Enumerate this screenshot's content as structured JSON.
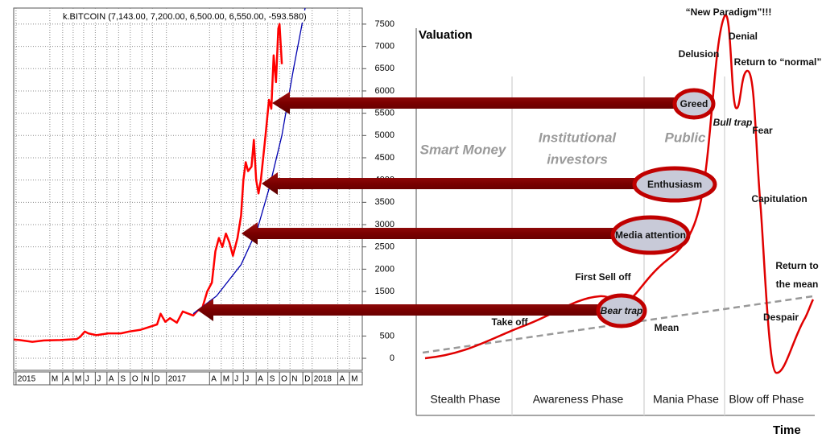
{
  "chart_data": {
    "type": "line",
    "title": "k.BITCOIN (7,143.00, 7,200.00, 6,500.00, 6,550.00, -593.580)",
    "xlim": [
      -0.2,
      29.7
    ],
    "ylim": [
      -270,
      7860
    ],
    "xticks": [
      {
        "value": 0,
        "label": "2015"
      },
      {
        "value": 2.9,
        "label": "M"
      },
      {
        "value": 4.0,
        "label": "A"
      },
      {
        "value": 4.9,
        "label": "M"
      },
      {
        "value": 5.8,
        "label": "J"
      },
      {
        "value": 6.8,
        "label": "J"
      },
      {
        "value": 7.8,
        "label": "A"
      },
      {
        "value": 8.8,
        "label": "S"
      },
      {
        "value": 9.8,
        "label": "O"
      },
      {
        "value": 10.8,
        "label": "N"
      },
      {
        "value": 11.7,
        "label": "D"
      },
      {
        "value": 12.9,
        "label": "2017"
      },
      {
        "value": 16.6,
        "label": "A"
      },
      {
        "value": 17.6,
        "label": "M"
      },
      {
        "value": 18.6,
        "label": "J"
      },
      {
        "value": 19.5,
        "label": "J"
      },
      {
        "value": 20.6,
        "label": "A"
      },
      {
        "value": 21.6,
        "label": "S"
      },
      {
        "value": 22.6,
        "label": "O"
      },
      {
        "value": 23.5,
        "label": "N"
      },
      {
        "value": 24.6,
        "label": "D"
      },
      {
        "value": 25.4,
        "label": "2018"
      },
      {
        "value": 27.6,
        "label": "A"
      },
      {
        "value": 28.6,
        "label": "M"
      }
    ],
    "yticks": [
      7500,
      7000,
      6500,
      6000,
      5500,
      5000,
      4500,
      4000,
      3500,
      3000,
      2500,
      2000,
      1500,
      500,
      0
    ],
    "grid": true,
    "series": [
      {
        "color": "#ff0000",
        "x": [
          -0.2,
          0.3,
          1.4,
          2.4,
          3.8,
          5.2,
          5.5,
          5.9,
          6.2,
          6.9,
          7.9,
          9.0,
          9.7,
          10.7,
          11.4,
          12.1,
          12.4,
          12.8,
          13.2,
          13.8,
          14.3,
          14.8,
          15.2,
          15.5,
          16.0,
          16.4,
          16.8,
          17.1,
          17.4,
          17.7,
          18.0,
          18.3,
          18.6,
          19.0,
          19.3,
          19.5,
          19.7,
          19.9,
          20.2,
          20.4,
          20.6,
          20.8,
          21.0,
          21.4,
          21.7,
          21.9,
          22.1,
          22.3,
          22.5,
          22.6,
          22.8
        ],
        "values": [
          420,
          410,
          370,
          400,
          410,
          430,
          480,
          600,
          560,
          520,
          560,
          560,
          600,
          640,
          700,
          760,
          1000,
          820,
          900,
          800,
          1050,
          1000,
          960,
          1050,
          1150,
          1500,
          1700,
          2400,
          2700,
          2500,
          2800,
          2600,
          2300,
          2700,
          3200,
          4000,
          4400,
          4200,
          4300,
          4900,
          4000,
          3700,
          4000,
          5000,
          5800,
          5600,
          6800,
          6200,
          7400,
          7500,
          6600
        ]
      },
      {
        "color": "#0000b0",
        "x": [
          15.2,
          17.2,
          19.3,
          20.7,
          21.7,
          22.8,
          23.8,
          24.8
        ],
        "values": [
          1000,
          1400,
          2100,
          2900,
          3800,
          5000,
          6500,
          7860
        ]
      }
    ]
  },
  "diagram": {
    "y_axis": "Valuation",
    "x_axis": "Time",
    "phases": [
      "Stealth Phase",
      "Awareness Phase",
      "Mania Phase",
      "Blow off Phase"
    ],
    "groups": [
      "Smart Money",
      [
        "Institutional",
        "investors"
      ],
      "Public"
    ],
    "labels": [
      "“New Paradigm”!!!",
      "Denial",
      "Delusion",
      "Return to “normal”",
      "Bull trap",
      "Fear",
      "Capitulation",
      [
        "Return to",
        "the mean"
      ],
      "Despair",
      "First Sell off",
      "Take off",
      "Mean"
    ],
    "callouts": [
      "Greed",
      "Enthusiasm",
      "Media attention",
      "Bear trap"
    ]
  }
}
